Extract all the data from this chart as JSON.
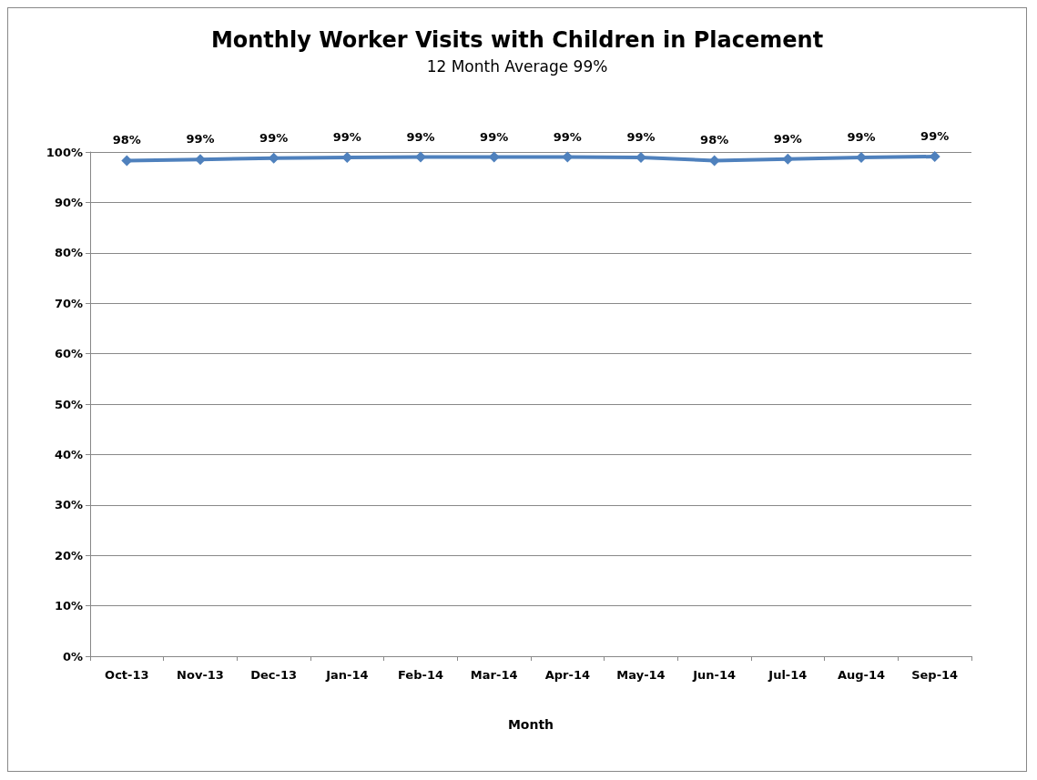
{
  "chart_data": {
    "type": "line",
    "title": "Monthly Worker Visits with Children in Placement",
    "subtitle": "12 Month Average 99%",
    "xlabel": "Month",
    "categories": [
      "Oct-13",
      "Nov-13",
      "Dec-13",
      "Jan-14",
      "Feb-14",
      "Mar-14",
      "Apr-14",
      "May-14",
      "Jun-14",
      "Jul-14",
      "Aug-14",
      "Sep-14"
    ],
    "series": [
      {
        "color": "#4f81bd",
        "values": [
          98.3,
          98.5,
          98.8,
          98.9,
          99.0,
          99.0,
          99.0,
          98.9,
          98.3,
          98.6,
          98.9,
          99.1
        ],
        "value_labels": [
          "98%",
          "99%",
          "99%",
          "99%",
          "99%",
          "99%",
          "99%",
          "99%",
          "98%",
          "99%",
          "99%",
          "99%"
        ]
      }
    ],
    "ylim": [
      0,
      100
    ],
    "yticks": [
      {
        "value": 0,
        "label": "0%"
      },
      {
        "value": 10,
        "label": "10%"
      },
      {
        "value": 20,
        "label": "20%"
      },
      {
        "value": 30,
        "label": "30%"
      },
      {
        "value": 40,
        "label": "40%"
      },
      {
        "value": 50,
        "label": "50%"
      },
      {
        "value": 60,
        "label": "60%"
      },
      {
        "value": 70,
        "label": "70%"
      },
      {
        "value": 80,
        "label": "80%"
      },
      {
        "value": 90,
        "label": "90%"
      },
      {
        "value": 100,
        "label": "100%"
      }
    ],
    "grid": "y",
    "marker": "diamond",
    "line_style": "solid"
  }
}
